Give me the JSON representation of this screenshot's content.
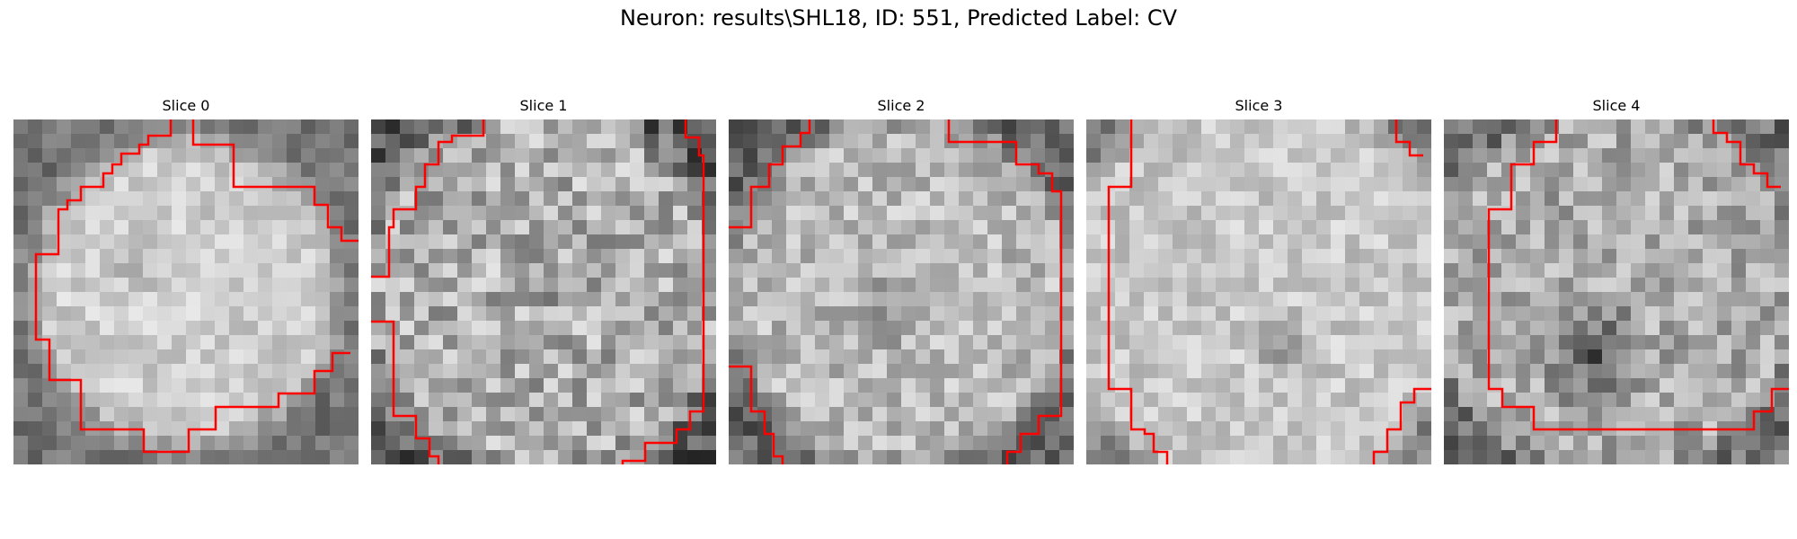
{
  "figure": {
    "title": "Neuron: results\\SHL18, ID: 551, Predicted Label: CV"
  },
  "panels": [
    {
      "title": "Slice 0"
    },
    {
      "title": "Slice 1"
    },
    {
      "title": "Slice 2"
    },
    {
      "title": "Slice 3"
    },
    {
      "title": "Slice 4"
    }
  ],
  "colors": {
    "contour": "#ff0000",
    "background": "#ffffff"
  }
}
